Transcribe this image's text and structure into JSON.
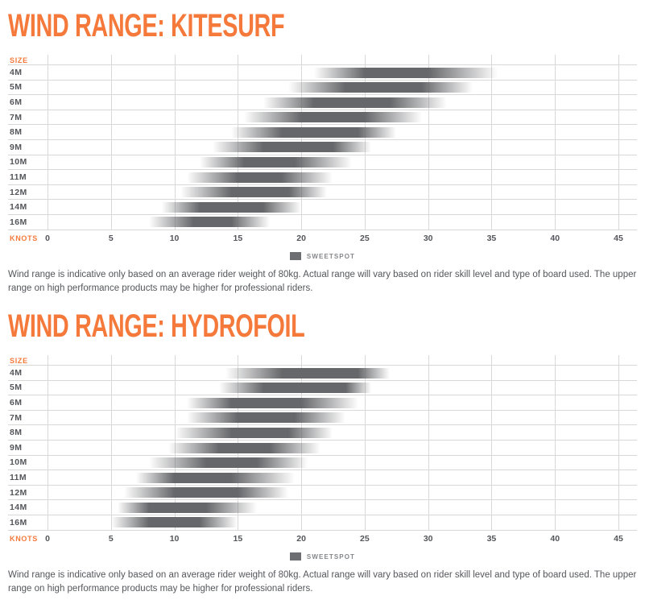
{
  "page": {
    "background": "#FFFFFF",
    "accent_color": "#F5793B",
    "bar_color": "#66676A",
    "legend_swatch_color": "#6D6E71",
    "grid_color": "#D8D8D9",
    "text_color": "#54565B",
    "disclaimer": "Wind range is indicative only based on an average rider weight of 80kg. Actual range will vary based on rider skill level and type of board used. The upper range on high performance products may be higher for professional riders."
  },
  "chart_data": [
    {
      "type": "bar",
      "title": "WIND RANGE: KITESURF",
      "ylabel": "SIZE",
      "xlabel": "KNOTS",
      "legend_label": "SWEETSPOT",
      "unit": "knots",
      "xlim": [
        0,
        45
      ],
      "xticks": [
        0,
        5,
        10,
        15,
        20,
        25,
        30,
        35,
        40,
        45
      ],
      "grid": true,
      "legend_position": "bottom-center",
      "bars": [
        {
          "size": "4M",
          "range_min": 21,
          "sweet_min": 25,
          "sweet_max": 30,
          "range_max": 35.5
        },
        {
          "size": "5M",
          "range_min": 19,
          "sweet_min": 23.5,
          "sweet_max": 29.5,
          "range_max": 33.5
        },
        {
          "size": "6M",
          "range_min": 17,
          "sweet_min": 21,
          "sweet_max": 27,
          "range_max": 31.5
        },
        {
          "size": "7M",
          "range_min": 15.5,
          "sweet_min": 20,
          "sweet_max": 25,
          "range_max": 29.5
        },
        {
          "size": "8M",
          "range_min": 14.5,
          "sweet_min": 18.5,
          "sweet_max": 24.5,
          "range_max": 27.5
        },
        {
          "size": "9M",
          "range_min": 13,
          "sweet_min": 17,
          "sweet_max": 22.5,
          "range_max": 25.5
        },
        {
          "size": "10M",
          "range_min": 12,
          "sweet_min": 15.5,
          "sweet_max": 19.5,
          "range_max": 24
        },
        {
          "size": "11M",
          "range_min": 11,
          "sweet_min": 15,
          "sweet_max": 18.5,
          "range_max": 22.5
        },
        {
          "size": "12M",
          "range_min": 10.5,
          "sweet_min": 14.5,
          "sweet_max": 19,
          "range_max": 22
        },
        {
          "size": "14M",
          "range_min": 9,
          "sweet_min": 12,
          "sweet_max": 17,
          "range_max": 20
        },
        {
          "size": "16M",
          "range_min": 8,
          "sweet_min": 11.5,
          "sweet_max": 14.5,
          "range_max": 17.5
        }
      ]
    },
    {
      "type": "bar",
      "title": "WIND RANGE: HYDROFOIL",
      "ylabel": "SIZE",
      "xlabel": "KNOTS",
      "legend_label": "SWEETSPOT",
      "unit": "knots",
      "xlim": [
        0,
        45
      ],
      "xticks": [
        0,
        5,
        10,
        15,
        20,
        25,
        30,
        35,
        40,
        45
      ],
      "grid": true,
      "legend_position": "bottom-center",
      "bars": [
        {
          "size": "4M",
          "range_min": 14,
          "sweet_min": 18.5,
          "sweet_max": 24.5,
          "range_max": 27
        },
        {
          "size": "5M",
          "range_min": 13.5,
          "sweet_min": 17,
          "sweet_max": 23.5,
          "range_max": 25.5
        },
        {
          "size": "6M",
          "range_min": 11,
          "sweet_min": 14.5,
          "sweet_max": 20,
          "range_max": 24.5
        },
        {
          "size": "7M",
          "range_min": 11,
          "sweet_min": 15,
          "sweet_max": 19.5,
          "range_max": 23.5
        },
        {
          "size": "8M",
          "range_min": 10,
          "sweet_min": 14.5,
          "sweet_max": 19,
          "range_max": 22.5
        },
        {
          "size": "9M",
          "range_min": 9.5,
          "sweet_min": 13.5,
          "sweet_max": 17.5,
          "range_max": 21.5
        },
        {
          "size": "10M",
          "range_min": 8,
          "sweet_min": 12.5,
          "sweet_max": 16.5,
          "range_max": 20.5
        },
        {
          "size": "11M",
          "range_min": 7,
          "sweet_min": 10,
          "sweet_max": 14.5,
          "range_max": 19.5
        },
        {
          "size": "12M",
          "range_min": 6,
          "sweet_min": 10,
          "sweet_max": 15,
          "range_max": 19
        },
        {
          "size": "14M",
          "range_min": 5.5,
          "sweet_min": 8,
          "sweet_max": 12.5,
          "range_max": 16.5
        },
        {
          "size": "16M",
          "range_min": 5,
          "sweet_min": 8,
          "sweet_max": 12,
          "range_max": 15
        }
      ]
    }
  ]
}
